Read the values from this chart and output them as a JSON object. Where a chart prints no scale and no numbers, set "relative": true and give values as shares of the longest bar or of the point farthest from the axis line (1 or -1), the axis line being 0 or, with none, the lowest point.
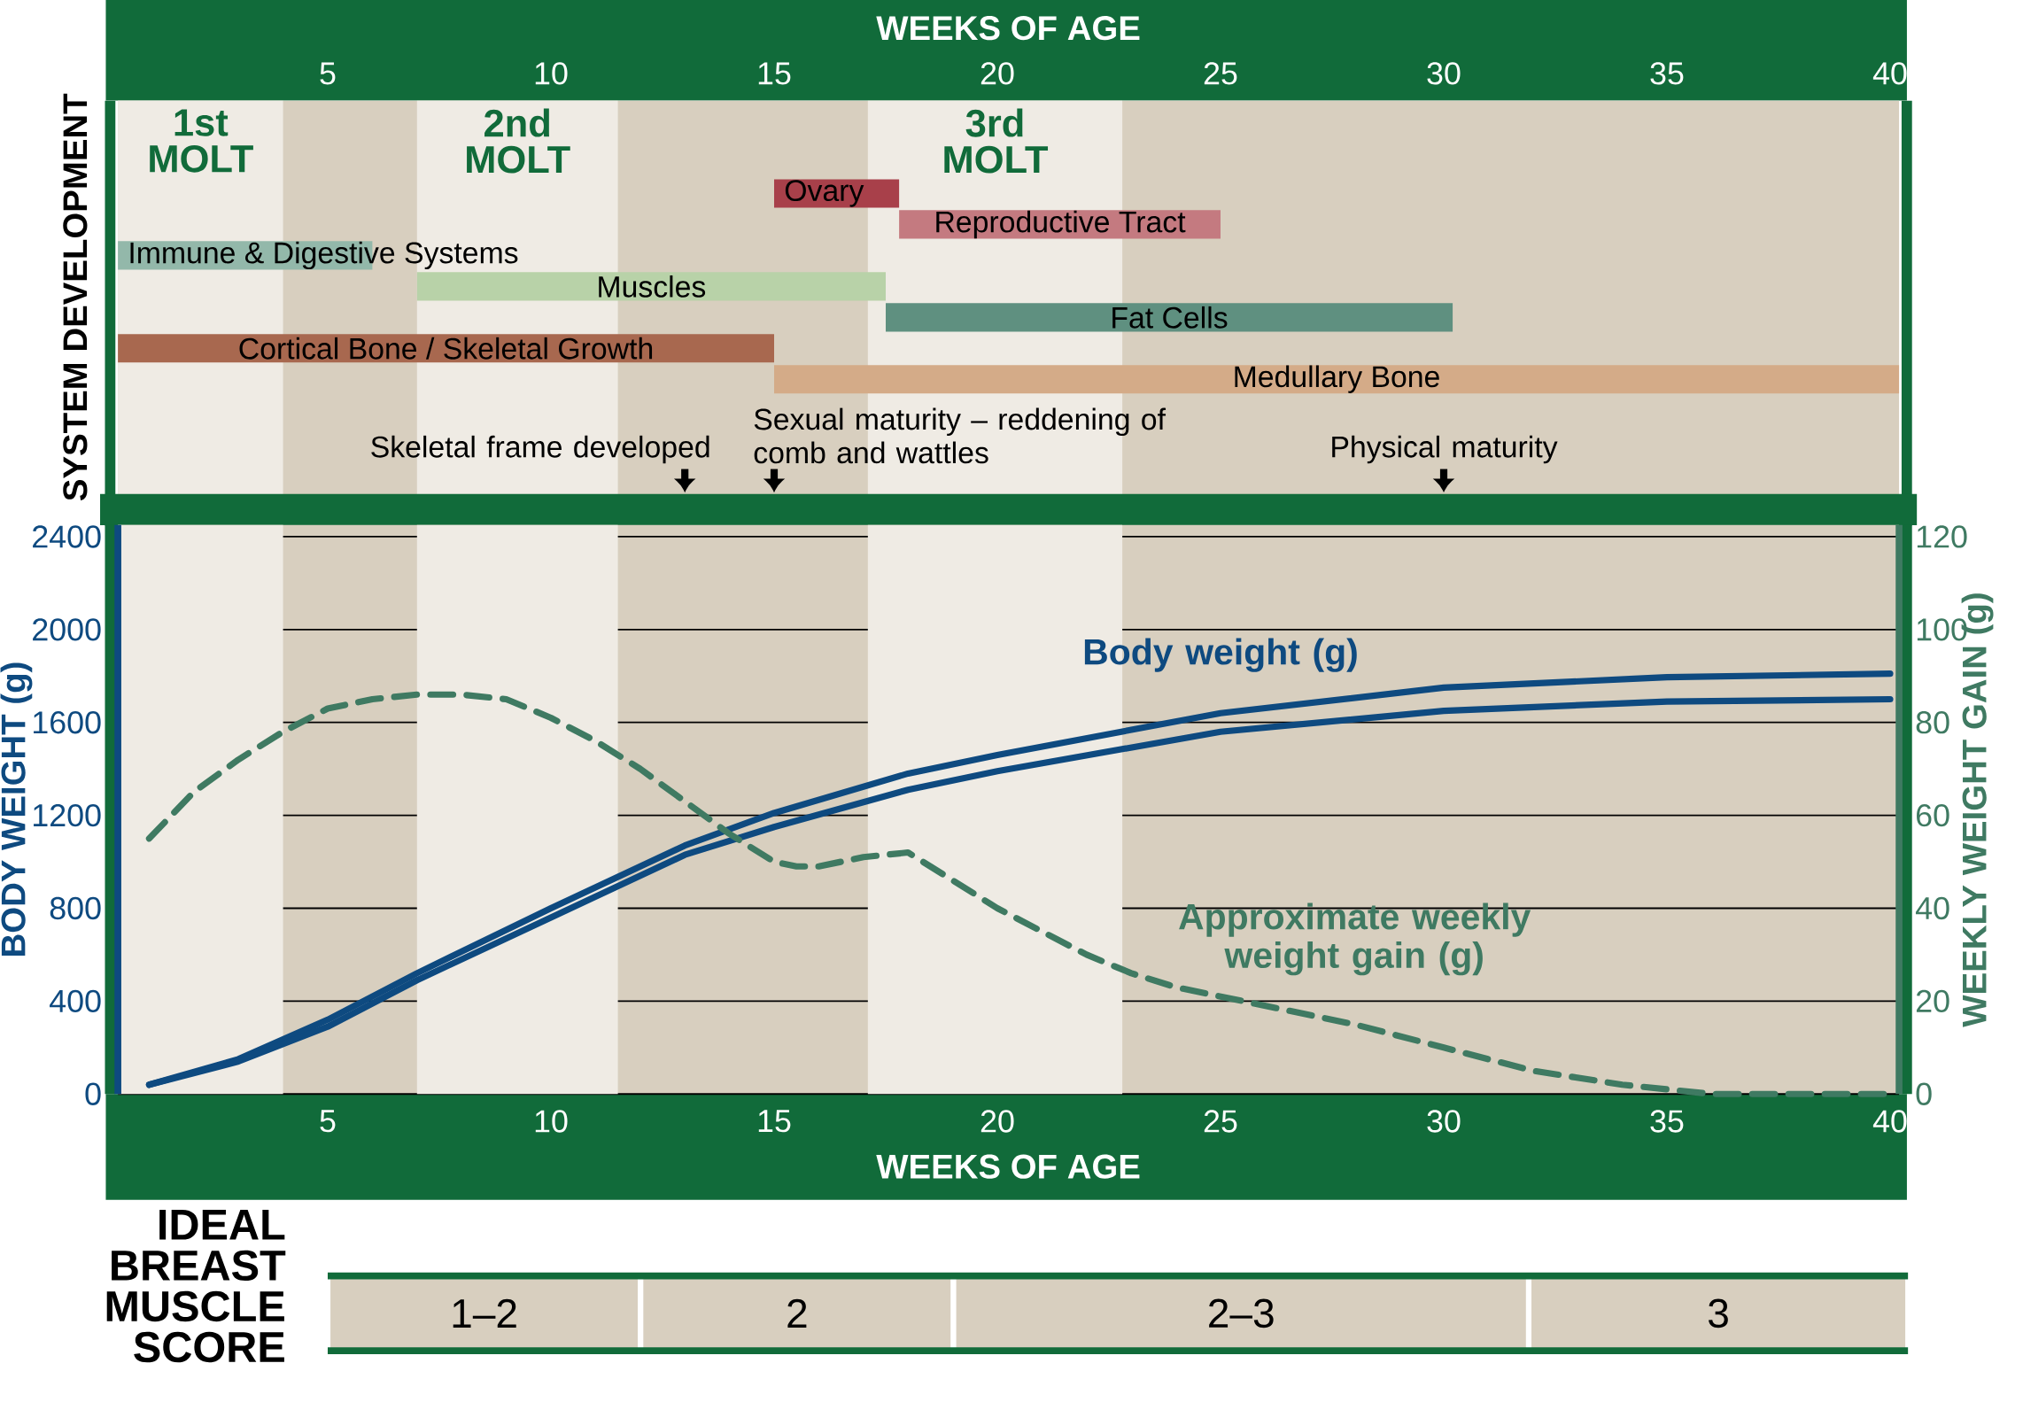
{
  "chart_data": [
    {
      "type": "bar",
      "orientation": "horizontal",
      "xlabel": "WEEKS OF AGE",
      "ylabel": "SYSTEM DEVELOPMENT",
      "categories": [
        "Ovary",
        "Reproductive Tract",
        "Immune & Digestive Systems",
        "Muscles",
        "Fat Cells",
        "Cortical Bone / Skeletal Growth",
        "Medullary Bone"
      ],
      "xlim": [
        0.3,
        40.2
      ],
      "xticks": [
        5,
        10,
        15,
        20,
        25,
        30,
        35,
        40
      ],
      "values": [
        2.8,
        7.2,
        5.7,
        10.5,
        12.7,
        14.7,
        25.2
      ],
      "base": [
        15,
        17.8,
        0.3,
        7,
        17.5,
        0.3,
        15
      ],
      "colors": [
        "#a8404a",
        "#c47a80",
        "#93b8aa",
        "#b8d2a8",
        "#5f9080",
        "#a8684f",
        "#d4ab88"
      ],
      "bands": [
        {
          "axis": "x",
          "from": 0.3,
          "to": 4,
          "label": "1st MOLT",
          "color": "#efebe4"
        },
        {
          "axis": "x",
          "from": 7,
          "to": 11.5,
          "label": "2nd MOLT",
          "color": "#efebe4"
        },
        {
          "axis": "x",
          "from": 17.1,
          "to": 22.8,
          "label": "3rd MOLT",
          "color": "#efebe4"
        }
      ],
      "tick_labels": "x",
      "annotations": [
        "Skeletal frame developed",
        "Sexual maturity – reddening of comb and wattles",
        "Physical maturity"
      ]
    },
    {
      "type": "line",
      "xlabel": "WEEKS OF AGE",
      "ylabel": "BODY WEIGHT (g)",
      "y2label": "WEEKLY WEIGHT GAIN (g)",
      "xlim": [
        0.3,
        40.2
      ],
      "xticks": [
        5,
        10,
        15,
        20,
        25,
        30,
        35,
        40
      ],
      "ylim": [
        0,
        2450
      ],
      "yticks": [
        0,
        400,
        800,
        1200,
        1600,
        2000,
        2400
      ],
      "y2lim": [
        0,
        122.5
      ],
      "y2ticks": [
        0,
        20,
        40,
        60,
        80,
        100,
        120
      ],
      "grid": "y",
      "bands": [
        {
          "axis": "x",
          "from": 0.3,
          "to": 4,
          "color": "#efebe4"
        },
        {
          "axis": "x",
          "from": 7,
          "to": 11.5,
          "color": "#efebe4"
        },
        {
          "axis": "x",
          "from": 17.1,
          "to": 22.8,
          "color": "#efebe4"
        }
      ],
      "series": [
        {
          "name": "Body weight (g)",
          "color": "#0e4a80",
          "x": [
            1,
            3,
            5,
            7,
            10,
            13,
            15,
            18,
            20,
            25,
            30,
            35,
            40
          ],
          "values": [
            40,
            150,
            320,
            520,
            800,
            1070,
            1210,
            1380,
            1460,
            1640,
            1750,
            1795,
            1810
          ]
        },
        {
          "color": "#0e4a80",
          "x": [
            1,
            3,
            5,
            7,
            10,
            13,
            15,
            18,
            20,
            25,
            30,
            35,
            40
          ],
          "values": [
            40,
            140,
            290,
            490,
            760,
            1030,
            1150,
            1310,
            1390,
            1560,
            1650,
            1690,
            1700
          ]
        },
        {
          "name": "Approximate weekly weight gain (g)",
          "color": "#3f7a62",
          "axis": "y2",
          "line_style": "dashed",
          "x": [
            1,
            2,
            3,
            4,
            5,
            6,
            7,
            8,
            9,
            10,
            11,
            12,
            13,
            14,
            15,
            15.5,
            16,
            17,
            18,
            19,
            20,
            21,
            22,
            23,
            24,
            26,
            28,
            30,
            32,
            34,
            36,
            38,
            40
          ],
          "values": [
            55,
            65,
            72,
            78,
            83,
            85,
            86,
            86,
            85,
            81,
            76,
            70,
            63,
            56,
            50,
            49,
            49,
            51,
            52,
            46,
            40,
            35,
            30,
            26,
            23,
            19,
            15,
            10,
            5,
            2,
            0,
            0,
            0
          ]
        }
      ]
    },
    {
      "type": "bar",
      "orientation": "horizontal",
      "stacked": true,
      "relative": true,
      "title": "IDEAL BREAST MUSCLE SCORE",
      "categories": [
        null
      ],
      "series": [
        {
          "name": "1–2",
          "color": "#d8cfbf",
          "values": [
            0.198
          ]
        },
        {
          "name": "2",
          "color": "#d8cfbf",
          "values": [
            0.198
          ]
        },
        {
          "name": "2–3",
          "color": "#d8cfbf",
          "values": [
            0.364
          ]
        },
        {
          "name": "3",
          "color": "#d8cfbf",
          "values": [
            0.24
          ]
        }
      ]
    }
  ]
}
